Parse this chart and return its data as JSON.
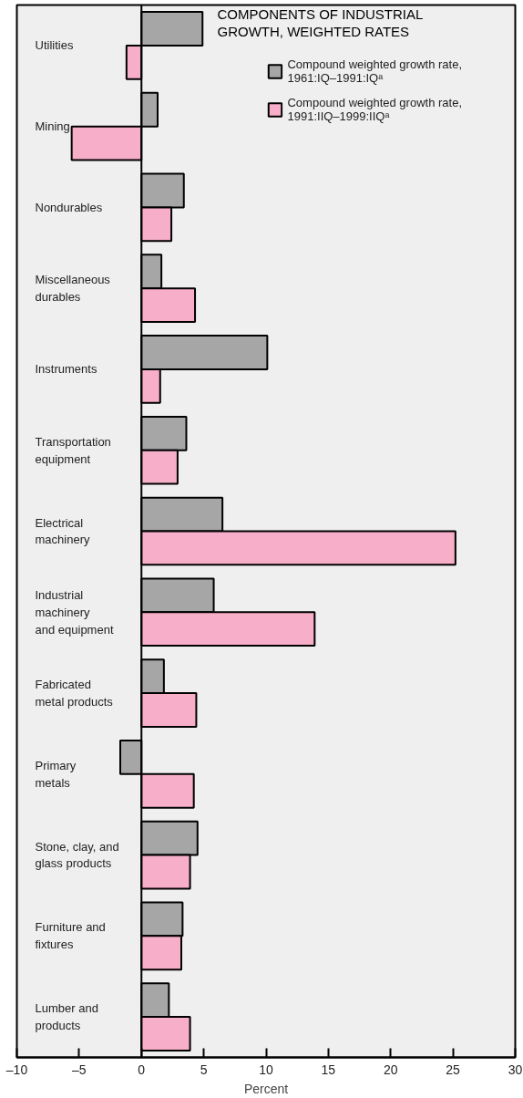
{
  "chart_data": {
    "type": "bar",
    "orientation": "horizontal",
    "title": "COMPONENTS OF INDUSTRIAL\nGROWTH, WEIGHTED RATES",
    "xlabel": "Percent",
    "categories": [
      "Utilities",
      "Mining",
      "Nondurables",
      "Miscellaneous\ndurables",
      "Instruments",
      "Transportation\nequipment",
      "Electrical\nmachinery",
      "Industrial\nmachinery\nand equipment",
      "Fabricated\nmetal products",
      "Primary\nmetals",
      "Stone, clay, and\nglass products",
      "Furniture and\nfixtures",
      "Lumber and\n products"
    ],
    "series": [
      {
        "name": "Compound weighted growth rate,\n1961:IQ–1991:IQᵃ",
        "color": "#a6a6a6",
        "values": [
          4.9,
          1.3,
          3.4,
          1.6,
          10.1,
          3.6,
          6.5,
          5.8,
          1.8,
          -1.7,
          4.5,
          3.3,
          2.2
        ]
      },
      {
        "name": "Compound weighted growth rate,\n1991:IIQ–1999:IIQᵃ",
        "color": "#f7aec8",
        "values": [
          -1.2,
          -5.6,
          2.4,
          4.3,
          1.5,
          2.9,
          25.2,
          13.9,
          4.4,
          4.2,
          3.9,
          3.2,
          3.9
        ]
      }
    ],
    "xlim": [
      -10,
      30
    ],
    "xticks": [
      {
        "value": -10,
        "label": "–10"
      },
      {
        "value": -5,
        "label": "–5"
      },
      0,
      5,
      10,
      15,
      20,
      25,
      30
    ],
    "ref_lines": [
      {
        "axis": "x",
        "value": 0
      }
    ],
    "legend": "top right",
    "grid": false
  }
}
